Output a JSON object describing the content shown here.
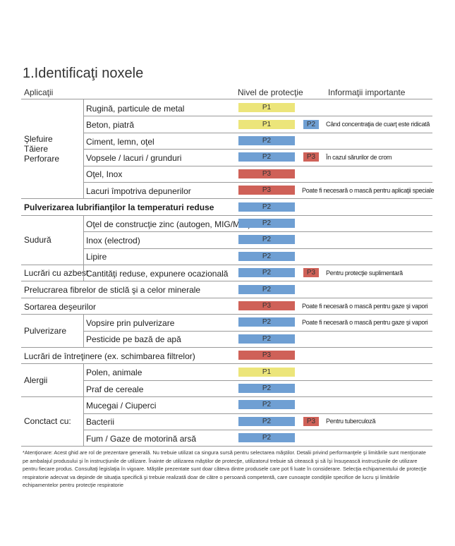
{
  "header": {
    "title": "1.Identificaţi noxele",
    "columns": [
      "Aplicaţii",
      "Nivel de protecţie",
      "Informaţii importante"
    ]
  },
  "sections": [
    {
      "label": "Şlefuire\nTăiere\nPerforare",
      "rows": [
        {
          "application": "Rugină, particule de metal",
          "level": "P1"
        },
        {
          "application": "Beton, piatră",
          "level": "P1",
          "extra": "P2",
          "note": "Când concentraţia de cuarţ este ridicată"
        },
        {
          "application": "Ciment, lemn, oţel",
          "level": "P2"
        },
        {
          "application": "Vopsele / lacuri / grunduri",
          "level": "P2",
          "extra": "P3",
          "note": "În cazul sărurilor de crom"
        },
        {
          "application": "Oţel, Inox",
          "level": "P3"
        },
        {
          "application": "Lacuri împotriva depunerilor",
          "level": "P3",
          "note": "Poate fi necesară o mască pentru aplicaţii speciale"
        }
      ]
    },
    {
      "rows": [
        {
          "application": "Pulverizarea lubrifianţilor la temperaturi reduse",
          "level": "P2",
          "bold": true
        }
      ]
    },
    {
      "label": "Sudură",
      "rows": [
        {
          "application": "Oţel de construcţie zinc (autogen, MIG/MIK)",
          "level": "P2"
        },
        {
          "application": "Inox (electrod)",
          "level": "P2"
        },
        {
          "application": "Lipire",
          "level": "P2"
        }
      ]
    },
    {
      "label": "Lucrări cu azbest",
      "rows": [
        {
          "application": "Cantităţi reduse, expunere ocazională",
          "level": "P2",
          "extra": "P3",
          "note": "Pentru protecţie suplimentară"
        }
      ]
    },
    {
      "rows": [
        {
          "application": "Prelucrarea fibrelor de sticlă şi a celor minerale",
          "level": "P2"
        }
      ]
    },
    {
      "rows": [
        {
          "application": "Sortarea deşeurilor",
          "level": "P3",
          "note": "Poate fi necesară o mască pentru gaze şi vapori"
        }
      ]
    },
    {
      "label": "Pulverizare",
      "rows": [
        {
          "application": "Vopsire prin pulverizare",
          "level": "P2",
          "note": "Poate fi necesară o mască pentru gaze şi vapori"
        },
        {
          "application": "Pesticide pe bază de apă",
          "level": "P2"
        }
      ]
    },
    {
      "rows": [
        {
          "application": "Lucrări de întreţinere (ex. schimbarea filtrelor)",
          "level": "P3"
        }
      ]
    },
    {
      "label": "Alergii",
      "rows": [
        {
          "application": "Polen, animale",
          "level": "P1"
        },
        {
          "application": "Praf de cereale",
          "level": "P2"
        }
      ]
    },
    {
      "label": "Conctact cu:",
      "rows": [
        {
          "application": "Mucegai / Ciuperci",
          "level": "P2"
        },
        {
          "application": "Bacterii",
          "level": "P2",
          "extra": "P3",
          "note": "Pentru tuberculoză"
        },
        {
          "application": "Fum / Gaze de motorină arsă",
          "level": "P2"
        }
      ]
    }
  ],
  "footnote": "*Atenţionare: Acest ghid are rol de prezentare generală. Nu trebuie utilizat ca singura sursă pentru selectarea măştilor. Detalii privind performanţele şi limitările sunt menţionate pe ambalajul produsului şi în instrucţiunile de utilizare. Înainte de utilizarea măştilor de protecţie, utilizatorul trebuie să citească şi să îşi însuşească instrucţiunile de utilizare pentru fiecare produs. Consultaţi legislaţia în vigoare. Măştile prezentate sunt doar câteva dintre produsele care pot fi luate în considerare. Selecţia echipamentului de protecţie respiratorie adecvat va depinde de situaţia specifică şi trebuie realizată doar de către o persoană competentă, care cunoaşte condiţiile specifice de lucru şi limitările echipamentelor pentru protecţie respiratorie"
}
